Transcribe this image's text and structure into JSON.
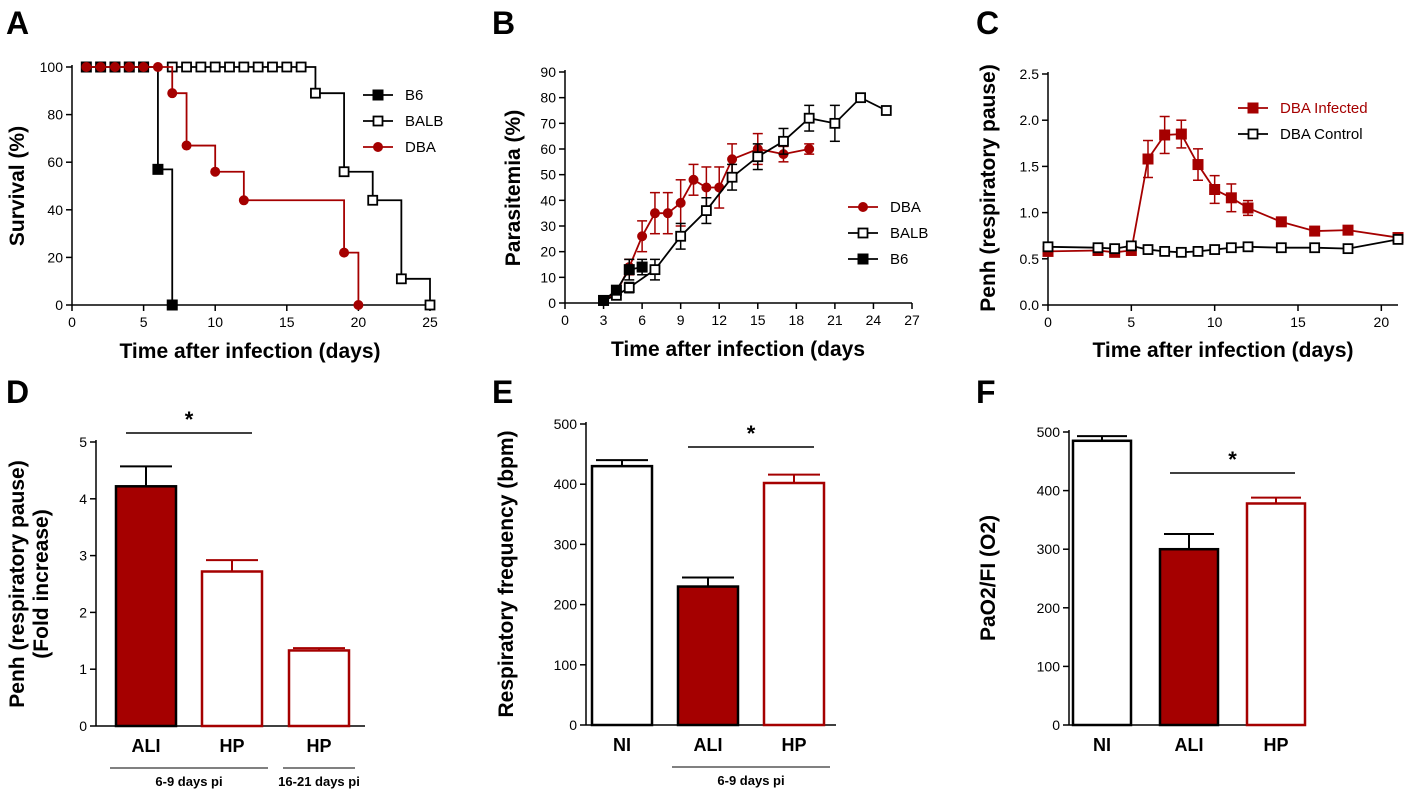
{
  "colors": {
    "dark_red": "#a50000",
    "black": "#000000",
    "white": "#ffffff"
  },
  "chart_data": [
    {
      "panel": "A",
      "type": "line",
      "step": true,
      "xlabel": "Time after infection (days)",
      "ylabel": "Survival (%)",
      "xlim": [
        0,
        25
      ],
      "ylim": [
        0,
        100
      ],
      "xticks": [
        0,
        5,
        10,
        15,
        20,
        25
      ],
      "yticks": [
        0,
        20,
        40,
        60,
        80,
        100
      ],
      "legend_position": "top-right",
      "series": [
        {
          "name": "B6",
          "color": "#000000",
          "marker": "square-filled",
          "x": [
            1,
            2,
            3,
            4,
            5,
            6,
            7
          ],
          "y": [
            100,
            100,
            100,
            100,
            100,
            57,
            0
          ]
        },
        {
          "name": "BALB",
          "color": "#000000",
          "marker": "square-open",
          "x": [
            7,
            8,
            9,
            10,
            11,
            12,
            13,
            14,
            15,
            16,
            17,
            19,
            21,
            23,
            25
          ],
          "y": [
            100,
            100,
            100,
            100,
            100,
            100,
            100,
            100,
            100,
            100,
            89,
            56,
            44,
            11,
            0
          ]
        },
        {
          "name": "DBA",
          "color": "#a50000",
          "marker": "circle-filled",
          "x": [
            1,
            2,
            3,
            4,
            5,
            6,
            7,
            8,
            10,
            12,
            19,
            20
          ],
          "y": [
            100,
            100,
            100,
            100,
            100,
            100,
            89,
            67,
            56,
            44,
            22,
            0
          ]
        }
      ]
    },
    {
      "panel": "B",
      "type": "line",
      "xlabel": "Time after infection (days",
      "ylabel": "Parasitemia (%)",
      "xlim": [
        0,
        27
      ],
      "ylim": [
        0,
        90
      ],
      "xticks": [
        0,
        3,
        6,
        9,
        12,
        15,
        18,
        21,
        24,
        27
      ],
      "yticks": [
        0,
        10,
        20,
        30,
        40,
        50,
        60,
        70,
        80,
        90
      ],
      "legend_position": "right",
      "series": [
        {
          "name": "DBA",
          "color": "#a50000",
          "marker": "circle-filled",
          "x": [
            3,
            4,
            5,
            6,
            7,
            8,
            9,
            10,
            11,
            12,
            13,
            15,
            17,
            19
          ],
          "y": [
            1,
            4,
            14,
            26,
            35,
            35,
            39,
            48,
            45,
            45,
            56,
            60,
            58,
            60
          ],
          "err": [
            0.5,
            1,
            3,
            6,
            8,
            8,
            9,
            6,
            8,
            8,
            6,
            6,
            3,
            2
          ]
        },
        {
          "name": "BALB",
          "color": "#000000",
          "marker": "square-open",
          "x": [
            3,
            4,
            5,
            7,
            9,
            11,
            13,
            15,
            17,
            19,
            21,
            23,
            25
          ],
          "y": [
            1,
            3,
            6,
            13,
            26,
            36,
            49,
            57,
            63,
            72,
            70,
            80,
            75
          ],
          "err": [
            0.5,
            1,
            2,
            4,
            5,
            5,
            5,
            5,
            5,
            5,
            7,
            1,
            1
          ]
        },
        {
          "name": "B6",
          "color": "#000000",
          "marker": "square-filled",
          "x": [
            3,
            4,
            5,
            6
          ],
          "y": [
            1,
            5,
            13,
            14
          ],
          "err": [
            0.5,
            1,
            4,
            3
          ]
        }
      ]
    },
    {
      "panel": "C",
      "type": "line",
      "xlabel": "Time after infection (days)",
      "ylabel": "Penh (respiratory pause)",
      "xlim": [
        0,
        21
      ],
      "ylim": [
        0,
        2.5
      ],
      "xticks": [
        0,
        5,
        10,
        15,
        20
      ],
      "yticks": [
        "0.0",
        "0.5",
        "1.0",
        "1.5",
        "2.0",
        "2.5"
      ],
      "legend_position": "top-right",
      "series": [
        {
          "name": "DBA Infected",
          "color": "#a50000",
          "marker": "square-filled",
          "x": [
            0,
            3,
            4,
            5,
            6,
            7,
            8,
            9,
            10,
            11,
            12,
            14,
            16,
            18,
            21
          ],
          "y": [
            0.58,
            0.59,
            0.57,
            0.59,
            1.58,
            1.84,
            1.85,
            1.52,
            1.25,
            1.16,
            1.05,
            0.9,
            0.8,
            0.81,
            0.73
          ],
          "err": [
            0.03,
            0.03,
            0.03,
            0.03,
            0.2,
            0.2,
            0.15,
            0.17,
            0.15,
            0.15,
            0.08,
            0.03,
            0.03,
            0.03,
            0.03
          ]
        },
        {
          "name": "DBA Control",
          "color": "#000000",
          "marker": "square-open",
          "x": [
            0,
            3,
            4,
            5,
            6,
            7,
            8,
            9,
            10,
            11,
            12,
            14,
            16,
            18,
            21
          ],
          "y": [
            0.63,
            0.62,
            0.61,
            0.64,
            0.6,
            0.58,
            0.57,
            0.58,
            0.6,
            0.62,
            0.63,
            0.62,
            0.62,
            0.61,
            0.71
          ],
          "err": [
            0.02,
            0.02,
            0.02,
            0.02,
            0.02,
            0.02,
            0.02,
            0.02,
            0.02,
            0.02,
            0.02,
            0.02,
            0.02,
            0.02,
            0.03
          ]
        }
      ]
    },
    {
      "panel": "D",
      "type": "bar",
      "ylabel_lines": [
        "Penh (respiratory pause)",
        "(Fold increase)"
      ],
      "ylim": [
        0,
        5
      ],
      "yticks": [
        0,
        1,
        2,
        3,
        4,
        5
      ],
      "categories": [
        "ALI",
        "HP",
        "HP"
      ],
      "values": [
        4.22,
        2.72,
        1.33
      ],
      "errors": [
        0.35,
        0.2,
        0.04
      ],
      "styles": [
        "filled",
        "open",
        "open"
      ],
      "groups": [
        {
          "label": "6-9 days pi",
          "from": 0,
          "to": 1
        },
        {
          "label": "16-21 days pi",
          "from": 2,
          "to": 2
        }
      ],
      "significance": [
        {
          "from": 0,
          "to": 1,
          "label": "*"
        }
      ]
    },
    {
      "panel": "E",
      "type": "bar",
      "ylabel": "Respiratory frequency (bpm)",
      "ylim": [
        0,
        500
      ],
      "yticks": [
        0,
        100,
        200,
        300,
        400,
        500
      ],
      "categories": [
        "NI",
        "ALI",
        "HP"
      ],
      "values": [
        430,
        230,
        402
      ],
      "errors": [
        10,
        15,
        14
      ],
      "styles": [
        "white",
        "filled",
        "open"
      ],
      "groups": [
        {
          "label": "6-9 days pi",
          "from": 1,
          "to": 2
        }
      ],
      "significance": [
        {
          "from": 1,
          "to": 2,
          "label": "*"
        }
      ]
    },
    {
      "panel": "F",
      "type": "bar",
      "ylabel": "PaO2/FI (O2)",
      "ylim": [
        0,
        500
      ],
      "yticks": [
        0,
        100,
        200,
        300,
        400,
        500
      ],
      "categories": [
        "NI",
        "ALI",
        "HP"
      ],
      "values": [
        485,
        300,
        378
      ],
      "errors": [
        8,
        26,
        10
      ],
      "styles": [
        "white",
        "filled",
        "open"
      ],
      "groups": [],
      "significance": [
        {
          "from": 1,
          "to": 2,
          "label": "*"
        }
      ]
    }
  ]
}
